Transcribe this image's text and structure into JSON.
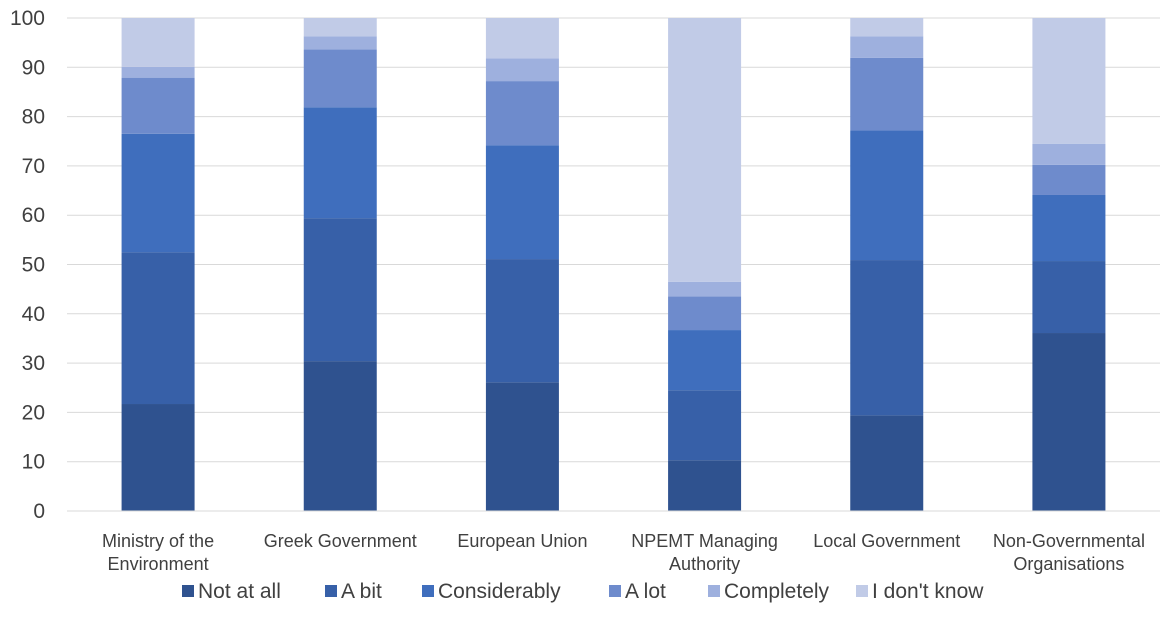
{
  "chart_data": {
    "type": "bar",
    "stacked": true,
    "title": "",
    "xlabel": "",
    "ylabel": "",
    "ylim": [
      0,
      100
    ],
    "yticks": [
      0,
      10,
      20,
      30,
      40,
      50,
      60,
      70,
      80,
      90,
      100
    ],
    "grid": true,
    "legend_position": "bottom",
    "categories": [
      [
        "Ministry of the",
        "Environment"
      ],
      [
        "Greek Government"
      ],
      [
        "European Union"
      ],
      [
        "NPEMT Managing",
        "Authority"
      ],
      [
        "Local Government"
      ],
      [
        "Non-Governmental",
        "Organisations"
      ]
    ],
    "series": [
      {
        "name": "Not at all",
        "color": "#2f528f",
        "values": [
          21.7,
          30.4,
          26.1,
          10.3,
          19.4,
          36.1
        ]
      },
      {
        "name": "A bit",
        "color": "#3760a8",
        "values": [
          30.8,
          29.0,
          25.0,
          14.2,
          31.5,
          14.6
        ]
      },
      {
        "name": "Considerably",
        "color": "#3f6ebd",
        "values": [
          24.0,
          22.5,
          23.1,
          12.2,
          26.3,
          13.4
        ]
      },
      {
        "name": "A lot",
        "color": "#6e8bcc",
        "values": [
          11.4,
          11.7,
          13.0,
          6.8,
          14.7,
          6.1
        ]
      },
      {
        "name": "Completely",
        "color": "#9eb0de",
        "values": [
          2.2,
          2.7,
          4.6,
          3.0,
          4.4,
          4.3
        ]
      },
      {
        "name": "I don't know",
        "color": "#c1cbe7",
        "values": [
          9.9,
          3.7,
          8.2,
          53.5,
          3.7,
          25.5
        ]
      }
    ]
  }
}
